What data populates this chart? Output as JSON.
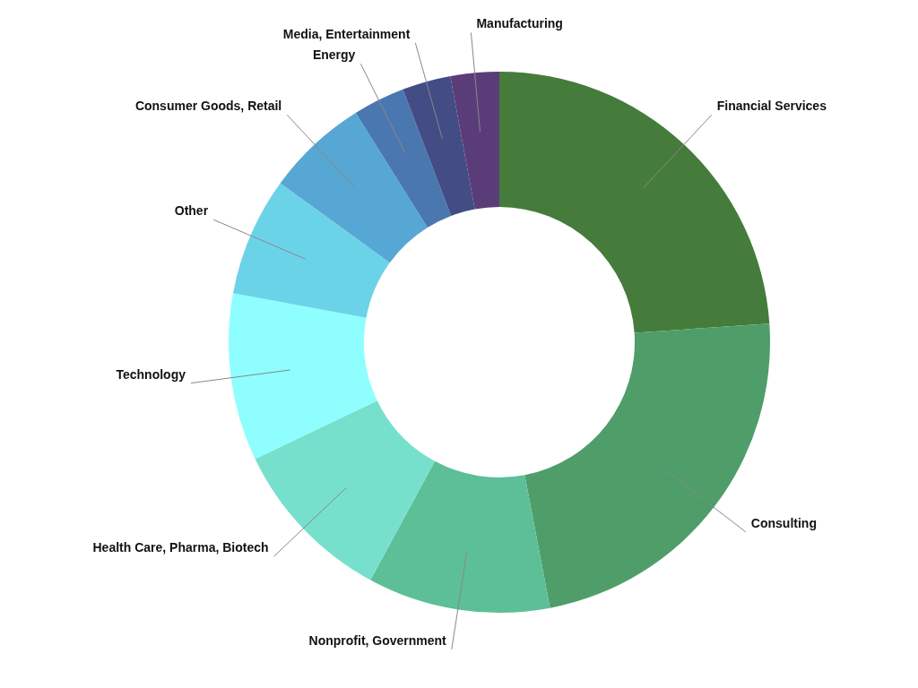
{
  "chart_data": {
    "type": "donut",
    "categories": [
      "Financial Services",
      "Consulting",
      "Nonprofit, Government",
      "Health Care, Pharma, Biotech",
      "Technology",
      "Other",
      "Consumer Goods, Retail",
      "Energy",
      "Media, Entertainment",
      "Manufacturing"
    ],
    "values": [
      23.9,
      23.1,
      10.9,
      10.0,
      10.0,
      7.1,
      6.1,
      3.1,
      2.9,
      2.9
    ],
    "colors": [
      "#457b3b",
      "#4f9e6a",
      "#5cbf97",
      "#77e0cc",
      "#8ffefe",
      "#6bd3e8",
      "#56a7d3",
      "#4a77b0",
      "#434c85",
      "#5a3d78"
    ]
  }
}
